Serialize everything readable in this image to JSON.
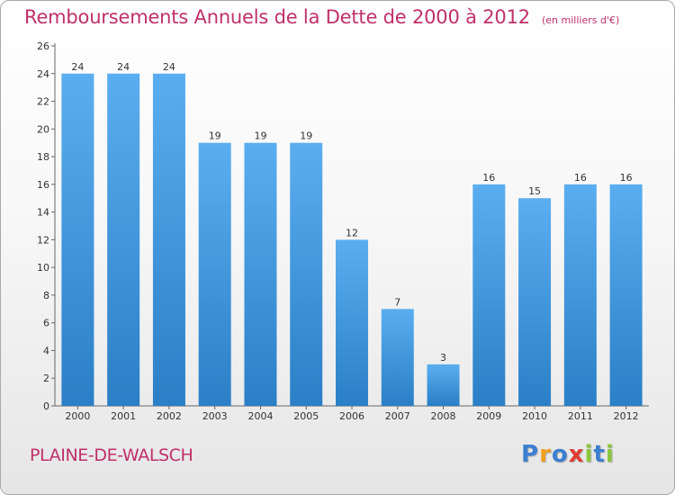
{
  "header": {
    "title": "Remboursements Annuels de la Dette de 2000 à 2012",
    "subtitle": "(en milliers d'€)"
  },
  "commune": "PLAINE-DE-WALSCH",
  "logo": {
    "text": "Proxiti",
    "letters": [
      {
        "char": "P",
        "color": "#3c7fd0"
      },
      {
        "char": "r",
        "color": "#f0a01e"
      },
      {
        "char": "o",
        "color": "#3c7fd0"
      },
      {
        "char": "x",
        "color": "#e03c32"
      },
      {
        "char": "i",
        "color": "#8cc63e"
      },
      {
        "char": "t",
        "color": "#3c7fd0"
      },
      {
        "char": "i",
        "color": "#8cc63e"
      }
    ]
  },
  "colors": {
    "accent": "#c0306a",
    "bar_top": "#5aaef0",
    "bar_bottom": "#2a7fc6"
  },
  "chart_data": {
    "type": "bar",
    "title": "Remboursements Annuels de la Dette de 2000 à 2012",
    "subtitle": "(en milliers d'€)",
    "categories": [
      "2000",
      "2001",
      "2002",
      "2003",
      "2004",
      "2005",
      "2006",
      "2007",
      "2008",
      "2009",
      "2010",
      "2011",
      "2012"
    ],
    "values": [
      24,
      24,
      24,
      19,
      19,
      19,
      12,
      7,
      3,
      16,
      15,
      16,
      16
    ],
    "ylim": [
      0,
      26
    ],
    "yticks": [
      0,
      2,
      4,
      6,
      8,
      10,
      12,
      14,
      16,
      18,
      20,
      22,
      24,
      26
    ],
    "grid": false,
    "legend": "none",
    "data_labels": true
  }
}
